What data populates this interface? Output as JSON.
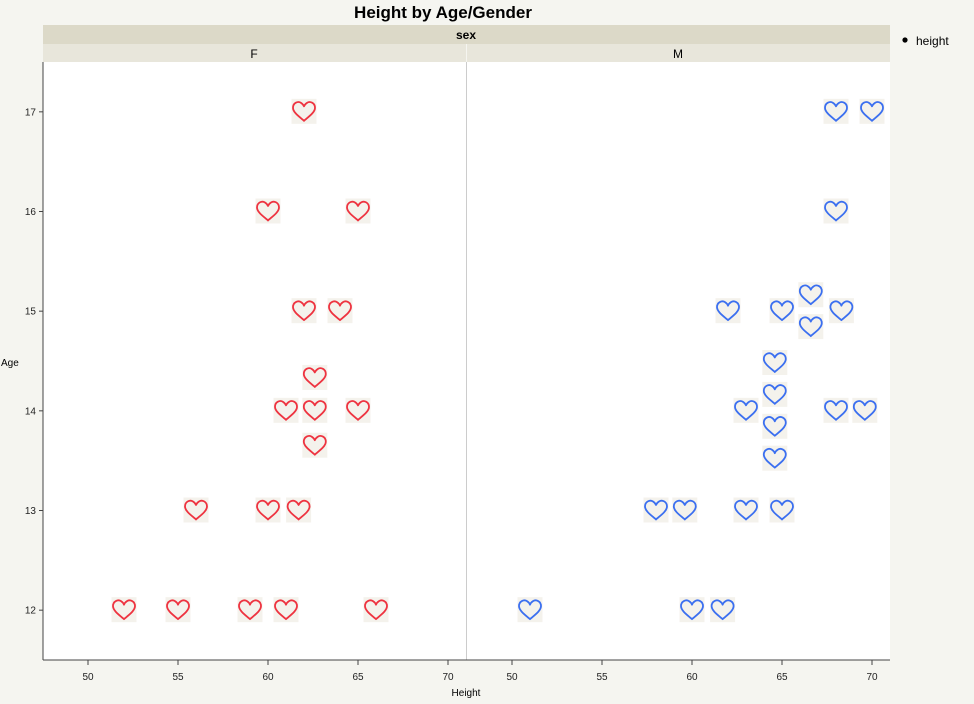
{
  "chart_data": {
    "type": "scatter",
    "title": "Height by Age/Gender",
    "facet_label": "sex",
    "facets": [
      "F",
      "M"
    ],
    "xlabel": "Height",
    "ylabel": "Age",
    "xlim": [
      47.5,
      71
    ],
    "ylim": [
      11.5,
      17.5
    ],
    "x_ticks": [
      50,
      55,
      60,
      65,
      70
    ],
    "y_ticks": [
      12,
      13,
      14,
      15,
      16,
      17
    ],
    "marker": "heart",
    "grid": false,
    "legend": {
      "position": "top-right",
      "entries": [
        "height"
      ]
    },
    "colors": {
      "F": "#ee3340",
      "M": "#3b6ff0"
    },
    "series": [
      {
        "facet": "F",
        "points": [
          [
            52,
            12
          ],
          [
            55,
            12
          ],
          [
            59,
            12
          ],
          [
            61,
            12
          ],
          [
            66,
            12
          ],
          [
            56,
            13
          ],
          [
            60,
            13
          ],
          [
            61.7,
            13
          ],
          [
            62.6,
            13.65
          ],
          [
            61,
            14
          ],
          [
            62.6,
            14
          ],
          [
            65,
            14
          ],
          [
            62.6,
            14.33
          ],
          [
            62,
            15
          ],
          [
            64,
            15
          ],
          [
            60,
            16
          ],
          [
            65,
            16
          ],
          [
            62,
            17
          ]
        ]
      },
      {
        "facet": "M",
        "points": [
          [
            51,
            12
          ],
          [
            60,
            12
          ],
          [
            61.7,
            12
          ],
          [
            58,
            13
          ],
          [
            59.6,
            13
          ],
          [
            63,
            13
          ],
          [
            65,
            13
          ],
          [
            64.6,
            13.52
          ],
          [
            64.6,
            13.84
          ],
          [
            63,
            14
          ],
          [
            64.6,
            14.16
          ],
          [
            68,
            14
          ],
          [
            69.6,
            14
          ],
          [
            64.6,
            14.48
          ],
          [
            62,
            15
          ],
          [
            65,
            15
          ],
          [
            66.6,
            14.84
          ],
          [
            66.6,
            15.16
          ],
          [
            68.3,
            15
          ],
          [
            68,
            16
          ],
          [
            68,
            17
          ],
          [
            70,
            17
          ]
        ]
      }
    ]
  }
}
